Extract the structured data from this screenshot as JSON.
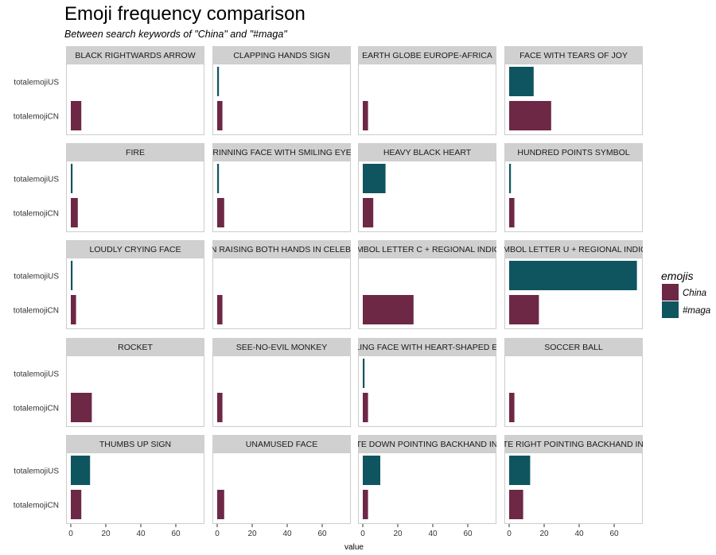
{
  "chart_data": {
    "type": "bar",
    "orientation": "horizontal",
    "title": "Emoji frequency comparison",
    "subtitle": "Between search keywords of \"China\" and \"#maga\"",
    "xlabel": "value",
    "ylabel": "",
    "xlim": [
      0,
      75
    ],
    "x_ticks": [
      0,
      20,
      40,
      60
    ],
    "categories": [
      "totalemojiUS",
      "totalemojiCN"
    ],
    "grid": false,
    "legend": {
      "title": "emojis",
      "position": "right",
      "entries": [
        {
          "label": "China",
          "color": "#6d2846"
        },
        {
          "label": "#maga",
          "color": "#0f5560"
        }
      ]
    },
    "panels": [
      {
        "label": "BLACK RIGHTWARDS ARROW",
        "values": {
          "totalemojiUS": 0,
          "totalemojiCN": 6
        }
      },
      {
        "label": "CLAPPING HANDS SIGN",
        "values": {
          "totalemojiUS": 1,
          "totalemojiCN": 3
        }
      },
      {
        "label": "EARTH GLOBE EUROPE-AFRICA",
        "values": {
          "totalemojiUS": 0,
          "totalemojiCN": 3
        }
      },
      {
        "label": "FACE WITH TEARS OF JOY",
        "values": {
          "totalemojiUS": 14,
          "totalemojiCN": 24
        }
      },
      {
        "label": "FIRE",
        "values": {
          "totalemojiUS": 1,
          "totalemojiCN": 4
        }
      },
      {
        "label": "GRINNING FACE WITH SMILING EYES",
        "values": {
          "totalemojiUS": 1,
          "totalemojiCN": 4
        }
      },
      {
        "label": "HEAVY BLACK HEART",
        "values": {
          "totalemojiUS": 13,
          "totalemojiCN": 6
        }
      },
      {
        "label": "HUNDRED POINTS SYMBOL",
        "values": {
          "totalemojiUS": 1,
          "totalemojiCN": 3
        }
      },
      {
        "label": "LOUDLY CRYING FACE",
        "values": {
          "totalemojiUS": 1,
          "totalemojiCN": 3
        }
      },
      {
        "label": "PERSON RAISING BOTH HANDS IN CELEBRATION",
        "values": {
          "totalemojiUS": 0,
          "totalemojiCN": 3
        }
      },
      {
        "label": "REGIONAL INDICATOR SYMBOL LETTER C + REGIONAL INDICATOR SYMBOL LETTER N",
        "values": {
          "totalemojiUS": 0,
          "totalemojiCN": 29
        }
      },
      {
        "label": "REGIONAL INDICATOR SYMBOL LETTER U + REGIONAL INDICATOR SYMBOL LETTER S",
        "values": {
          "totalemojiUS": 73,
          "totalemojiCN": 17
        }
      },
      {
        "label": "ROCKET",
        "values": {
          "totalemojiUS": 0,
          "totalemojiCN": 12
        }
      },
      {
        "label": "SEE-NO-EVIL MONKEY",
        "values": {
          "totalemojiUS": 0,
          "totalemojiCN": 3
        }
      },
      {
        "label": "SMILING FACE WITH HEART-SHAPED EYES",
        "values": {
          "totalemojiUS": 1,
          "totalemojiCN": 3
        }
      },
      {
        "label": "SOCCER BALL",
        "values": {
          "totalemojiUS": 0,
          "totalemojiCN": 3
        }
      },
      {
        "label": "THUMBS UP SIGN",
        "values": {
          "totalemojiUS": 11,
          "totalemojiCN": 6
        }
      },
      {
        "label": "UNAMUSED FACE",
        "values": {
          "totalemojiUS": 0,
          "totalemojiCN": 4
        }
      },
      {
        "label": "WHITE DOWN POINTING BACKHAND INDEX",
        "values": {
          "totalemojiUS": 10,
          "totalemojiCN": 3
        }
      },
      {
        "label": "WHITE RIGHT POINTING BACKHAND INDEX",
        "values": {
          "totalemojiUS": 12,
          "totalemojiCN": 8
        }
      }
    ]
  }
}
